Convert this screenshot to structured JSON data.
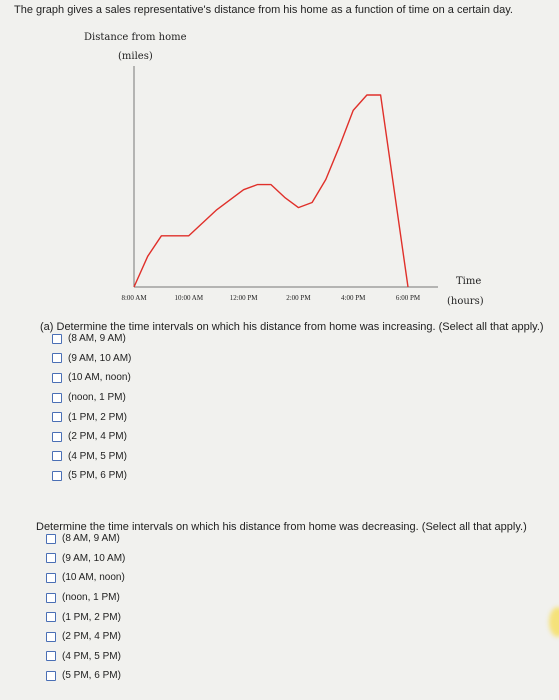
{
  "intro_text": "The graph gives a sales representative's distance from his home as a function of time on a certain day.",
  "graph": {
    "y_label_line1": "Distance from home",
    "y_label_line2": "(miles)",
    "x_label_line1": "Time",
    "x_label_line2": "(hours)",
    "x_ticks": [
      "8:00 AM",
      "10:00 AM",
      "12:00 PM",
      "2:00 PM",
      "4:00 PM",
      "6:00 PM"
    ],
    "curve_color": "#e0302a"
  },
  "chart_data": {
    "type": "line",
    "title": "",
    "xlabel": "Time (hours)",
    "ylabel": "Distance from home (miles)",
    "x_ticks": [
      "8:00 AM",
      "10:00 AM",
      "12:00 PM",
      "2:00 PM",
      "4:00 PM",
      "6:00 PM"
    ],
    "x": [
      "8:00 AM",
      "8:30 AM",
      "9:00 AM",
      "10:00 AM",
      "11:00 AM",
      "12:00 PM",
      "12:30 PM",
      "1:00 PM",
      "1:30 PM",
      "2:00 PM",
      "2:30 PM",
      "3:00 PM",
      "3:30 PM",
      "4:00 PM",
      "4:30 PM",
      "5:00 PM",
      "6:00 PM"
    ],
    "y": [
      0,
      1.2,
      2.0,
      2.0,
      3.0,
      3.8,
      4.0,
      4.0,
      3.5,
      3.1,
      3.3,
      4.2,
      5.5,
      6.9,
      7.5,
      7.5,
      0
    ],
    "grid": false,
    "legend": "none"
  },
  "part_a": {
    "prompt": "(a) Determine the time intervals on which his distance from home was increasing. (Select all that apply.)",
    "options": [
      "(8 AM, 9 AM)",
      "(9 AM, 10 AM)",
      "(10 AM, noon)",
      "(noon, 1 PM)",
      "(1 PM, 2 PM)",
      "(2 PM, 4 PM)",
      "(4 PM, 5 PM)",
      "(5 PM, 6 PM)"
    ]
  },
  "part_b": {
    "prompt": "Determine the time intervals on which his distance from home was decreasing. (Select all that apply.)",
    "options": [
      "(8 AM, 9 AM)",
      "(9 AM, 10 AM)",
      "(10 AM, noon)",
      "(noon, 1 PM)",
      "(1 PM, 2 PM)",
      "(2 PM, 4 PM)",
      "(4 PM, 5 PM)",
      "(5 PM, 6 PM)"
    ]
  }
}
